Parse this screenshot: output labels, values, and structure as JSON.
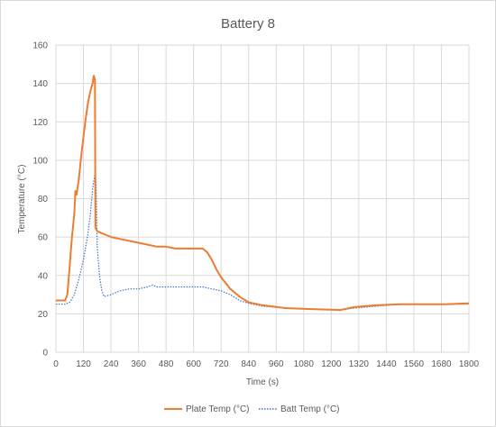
{
  "chart_data": {
    "type": "line",
    "title": "Battery 8",
    "xlabel": "Time (s)",
    "ylabel": "Temperature (°C)",
    "xlim": [
      0,
      1800
    ],
    "ylim": [
      0,
      160
    ],
    "x_ticks": [
      0,
      120,
      240,
      360,
      480,
      600,
      720,
      840,
      960,
      1080,
      1200,
      1320,
      1440,
      1560,
      1680,
      1800
    ],
    "y_ticks": [
      0,
      20,
      40,
      60,
      80,
      100,
      120,
      140,
      160
    ],
    "grid": true,
    "legend_position": "bottom",
    "series": [
      {
        "name": "Plate Temp (°C)",
        "color": "#ED7D31",
        "style": "solid",
        "points": [
          [
            0,
            27
          ],
          [
            40,
            27
          ],
          [
            50,
            30
          ],
          [
            60,
            45
          ],
          [
            70,
            60
          ],
          [
            80,
            72
          ],
          [
            85,
            84
          ],
          [
            90,
            82
          ],
          [
            100,
            90
          ],
          [
            110,
            102
          ],
          [
            120,
            112
          ],
          [
            130,
            122
          ],
          [
            140,
            130
          ],
          [
            150,
            136
          ],
          [
            160,
            140
          ],
          [
            165,
            144
          ],
          [
            170,
            142
          ],
          [
            172,
            65
          ],
          [
            180,
            63
          ],
          [
            200,
            62
          ],
          [
            220,
            61
          ],
          [
            240,
            60
          ],
          [
            280,
            59
          ],
          [
            320,
            58
          ],
          [
            360,
            57
          ],
          [
            400,
            56
          ],
          [
            440,
            55
          ],
          [
            480,
            55
          ],
          [
            520,
            54
          ],
          [
            560,
            54
          ],
          [
            600,
            54
          ],
          [
            640,
            54
          ],
          [
            660,
            52
          ],
          [
            680,
            48
          ],
          [
            700,
            43
          ],
          [
            720,
            39
          ],
          [
            760,
            33
          ],
          [
            800,
            29
          ],
          [
            840,
            26
          ],
          [
            900,
            24.5
          ],
          [
            1000,
            23
          ],
          [
            1100,
            22.5
          ],
          [
            1240,
            22
          ],
          [
            1300,
            23.5
          ],
          [
            1400,
            24.5
          ],
          [
            1500,
            25
          ],
          [
            1600,
            25
          ],
          [
            1700,
            25
          ],
          [
            1800,
            25.5
          ]
        ]
      },
      {
        "name": "Batt Temp (°C)",
        "color": "#4472C4",
        "style": "dotted",
        "points": [
          [
            0,
            25
          ],
          [
            40,
            25
          ],
          [
            60,
            26
          ],
          [
            80,
            30
          ],
          [
            100,
            38
          ],
          [
            120,
            48
          ],
          [
            140,
            62
          ],
          [
            150,
            72
          ],
          [
            160,
            85
          ],
          [
            170,
            93
          ],
          [
            175,
            88
          ],
          [
            180,
            55
          ],
          [
            190,
            40
          ],
          [
            200,
            32
          ],
          [
            210,
            29
          ],
          [
            240,
            30
          ],
          [
            280,
            32
          ],
          [
            320,
            33
          ],
          [
            360,
            33
          ],
          [
            400,
            34
          ],
          [
            420,
            35
          ],
          [
            440,
            34
          ],
          [
            480,
            34
          ],
          [
            520,
            34
          ],
          [
            560,
            34
          ],
          [
            600,
            34
          ],
          [
            640,
            34
          ],
          [
            680,
            33
          ],
          [
            720,
            32
          ],
          [
            760,
            30
          ],
          [
            800,
            27
          ],
          [
            840,
            25.5
          ],
          [
            900,
            24
          ],
          [
            1000,
            23
          ],
          [
            1100,
            22.5
          ],
          [
            1240,
            22
          ],
          [
            1300,
            23
          ],
          [
            1400,
            24
          ],
          [
            1500,
            25
          ],
          [
            1600,
            25
          ],
          [
            1700,
            25
          ],
          [
            1800,
            25
          ]
        ]
      }
    ]
  }
}
